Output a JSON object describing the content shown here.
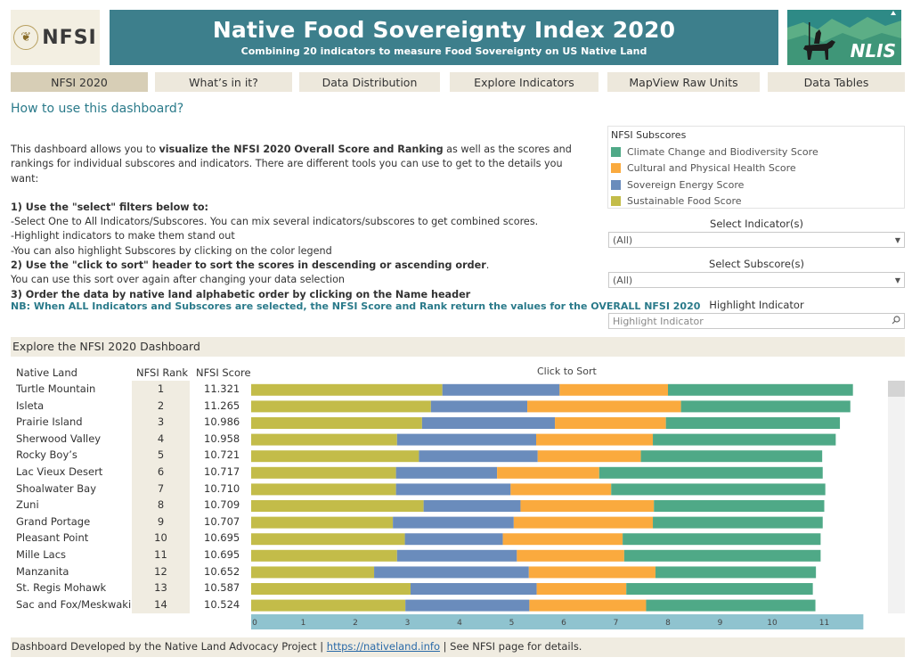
{
  "header": {
    "logo_text": "NFSI",
    "title": "Native Food Sovereignty Index 2020",
    "subtitle": "Combining 20 indicators to measure Food Sovereignty on US Native Land",
    "right_logo_text": "NLIS"
  },
  "tabs": [
    {
      "label": "NFSI 2020",
      "active": true
    },
    {
      "label": "What’s in it?",
      "active": false
    },
    {
      "label": "Data Distribution",
      "active": false
    },
    {
      "label": "Explore Indicators",
      "active": false
    },
    {
      "label": "MapView Raw Units",
      "active": false
    },
    {
      "label": "Data Tables",
      "active": false
    }
  ],
  "howto": {
    "title": "How to use this dashboard?",
    "intro_pre": "This dashboard allows you to ",
    "intro_bold": "visualize the NFSI 2020 Overall Score and Ranking",
    "intro_post": " as well as the scores and rankings for individual subscores and indicators. There are different tools you can use to get to the details you want:",
    "step1_title": "1) Use the \"select\" filters below to:",
    "step1_lines": [
      "-Select One to All Indicators/Subscores. You can mix several indicators/subscores to get combined scores.",
      "-Highlight indicators to make them stand out",
      "-You can also highlight Subscores by clicking on the color legend"
    ],
    "step2_title": "2) Use the \"click to sort\" header to sort the scores in descending or ascending order",
    "step2_end": ".",
    "step2_line": "You can use this sort over again after changing your data selection",
    "step3_title": "3) Order the data by native land alphabetic order by clicking on the Name header",
    "nb": "NB: When ALL Indicators and Subscores are selected, the NFSI Score and Rank return the values for the OVERALL NFSI 2020"
  },
  "legend": {
    "title": "NFSI Subscores",
    "items": [
      {
        "label": "Climate Change and Biodiversity Score",
        "color": "#4fa987"
      },
      {
        "label": "Cultural and Physical Health Score",
        "color": "#faaa3e"
      },
      {
        "label": "Sovereign Energy Score",
        "color": "#6a8cbc"
      },
      {
        "label": "Sustainable Food Score",
        "color": "#c3bc49"
      }
    ]
  },
  "filters": {
    "indicator_label": "Select Indicator(s)",
    "indicator_value": "(All)",
    "subscore_label": "Select Subscore(s)",
    "subscore_value": "(All)",
    "highlight_label": "Highlight Indicator",
    "highlight_placeholder": "Highlight Indicator"
  },
  "dashboard": {
    "title": "Explore the NFSI 2020 Dashboard",
    "col_name": "Native Land",
    "col_rank": "NFSI Rank",
    "col_score": "NFSI Score",
    "click_to_sort": "Click to Sort"
  },
  "chart_data": {
    "type": "bar",
    "orientation": "horizontal",
    "stacked": true,
    "xlim": [
      0,
      11.75
    ],
    "x_ticks": [
      0,
      1,
      2,
      3,
      4,
      5,
      6,
      7,
      8,
      9,
      10,
      11
    ],
    "categories": [
      "Turtle Mountain",
      "Isleta",
      "Prairie Island",
      "Sherwood Valley",
      "Rocky Boy’s",
      "Lac Vieux Desert",
      "Shoalwater Bay",
      "Zuni",
      "Grand Portage",
      "Pleasant Point",
      "Mille Lacs",
      "Manzanita",
      "St. Regis Mohawk",
      "Sac and Fox/Meskwaki"
    ],
    "ranks": [
      1,
      2,
      3,
      4,
      5,
      6,
      7,
      8,
      9,
      10,
      11,
      12,
      13,
      14
    ],
    "scores": [
      "11.321",
      "11.265",
      "10.986",
      "10.958",
      "10.721",
      "10.717",
      "10.710",
      "10.709",
      "10.707",
      "10.695",
      "10.695",
      "10.652",
      "10.587",
      "10.524"
    ],
    "series": [
      {
        "name": "Sustainable Food Score",
        "color": "#c3bc49",
        "values": [
          3.67,
          3.45,
          3.28,
          2.8,
          3.22,
          2.78,
          2.78,
          3.31,
          2.72,
          2.95,
          2.8,
          2.36,
          3.06,
          2.96
        ]
      },
      {
        "name": "Sovereign Energy Score",
        "color": "#6a8cbc",
        "values": [
          2.25,
          1.85,
          2.55,
          2.67,
          2.28,
          1.94,
          2.2,
          1.86,
          2.32,
          1.88,
          2.3,
          2.97,
          2.42,
          2.38
        ]
      },
      {
        "name": "Cultural and Physical Health Score",
        "color": "#faaa3e",
        "values": [
          2.08,
          2.95,
          2.13,
          2.24,
          1.98,
          1.96,
          1.93,
          2.56,
          2.67,
          2.3,
          2.06,
          2.43,
          1.72,
          2.24
        ]
      },
      {
        "name": "Climate Change and Biodiversity Score",
        "color": "#4fa987",
        "values": [
          3.55,
          3.25,
          3.34,
          3.51,
          3.48,
          4.29,
          4.11,
          3.27,
          3.26,
          3.8,
          3.77,
          3.08,
          3.58,
          3.25
        ]
      }
    ]
  },
  "footer": {
    "pre": "Dashboard Developed by the Native Land Advocacy Project | ",
    "link": "https://nativeland.info",
    "post": " | See NFSI page for details."
  }
}
